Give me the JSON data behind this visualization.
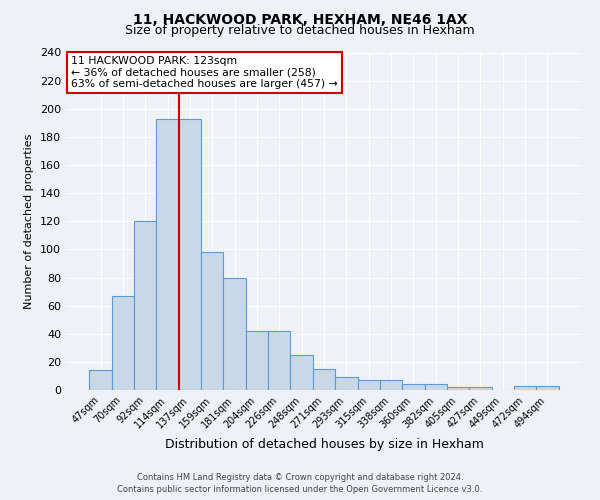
{
  "title": "11, HACKWOOD PARK, HEXHAM, NE46 1AX",
  "subtitle": "Size of property relative to detached houses in Hexham",
  "xlabel": "Distribution of detached houses by size in Hexham",
  "ylabel": "Number of detached properties",
  "bin_labels": [
    "47sqm",
    "70sqm",
    "92sqm",
    "114sqm",
    "137sqm",
    "159sqm",
    "181sqm",
    "204sqm",
    "226sqm",
    "248sqm",
    "271sqm",
    "293sqm",
    "315sqm",
    "338sqm",
    "360sqm",
    "382sqm",
    "405sqm",
    "427sqm",
    "449sqm",
    "472sqm",
    "494sqm"
  ],
  "bar_heights": [
    14,
    67,
    120,
    193,
    193,
    98,
    80,
    42,
    42,
    25,
    15,
    9,
    7,
    7,
    4,
    4,
    2,
    2,
    0,
    3,
    3
  ],
  "bar_color": "#c8d8e8",
  "bar_edge_color": "#5b9bd5",
  "vline_x_index": 3,
  "vline_color": "#cc0000",
  "ylim": [
    0,
    240
  ],
  "yticks": [
    0,
    20,
    40,
    60,
    80,
    100,
    120,
    140,
    160,
    180,
    200,
    220,
    240
  ],
  "annotation_title": "11 HACKWOOD PARK: 123sqm",
  "annotation_line1": "← 36% of detached houses are smaller (258)",
  "annotation_line2": "63% of semi-detached houses are larger (457) →",
  "annotation_box_color": "#ffffff",
  "annotation_box_edge": "#cc0000",
  "footer_line1": "Contains HM Land Registry data © Crown copyright and database right 2024.",
  "footer_line2": "Contains public sector information licensed under the Open Government Licence v3.0.",
  "background_color": "#eef2f7",
  "grid_color": "#ffffff",
  "title_fontsize": 10,
  "subtitle_fontsize": 9,
  "ylabel_fontsize": 8,
  "xlabel_fontsize": 9
}
